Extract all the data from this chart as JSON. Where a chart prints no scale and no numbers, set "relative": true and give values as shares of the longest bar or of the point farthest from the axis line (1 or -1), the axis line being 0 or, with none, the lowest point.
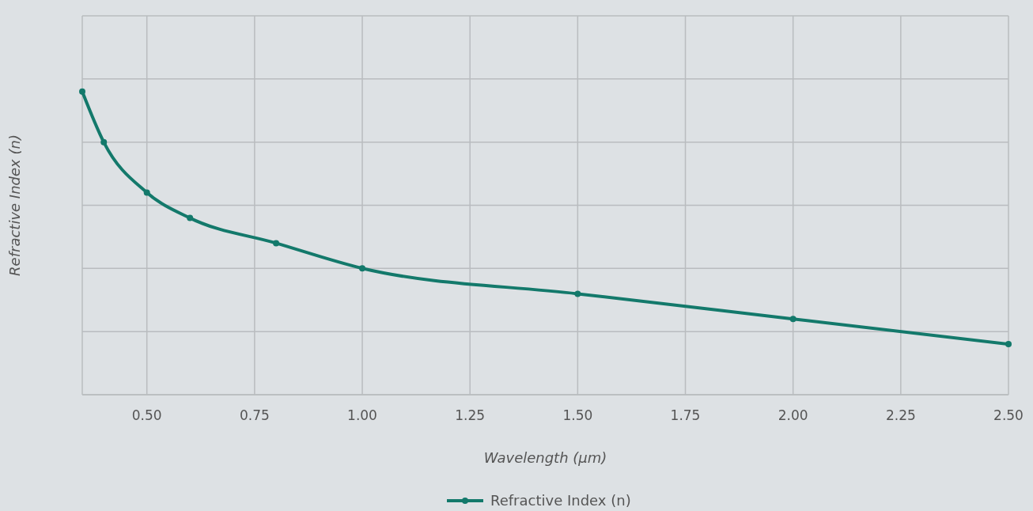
{
  "chart_data": {
    "type": "line",
    "xlabel": "Wavelength (µm)",
    "ylabel": "Refractive Index (n)",
    "x": [
      0.35,
      0.4,
      0.5,
      0.6,
      0.8,
      1.0,
      1.5,
      2.0,
      2.5
    ],
    "series": [
      {
        "name": "Refractive Index (n)",
        "color": "#13796b",
        "values": [
          1,
          0.833,
          0.667,
          0.583,
          0.5,
          0.417,
          0.333,
          0.25,
          0.167
        ]
      }
    ],
    "relative": true,
    "xlim": [
      0.35,
      2.5
    ],
    "xticks": [
      {
        "value": 0.5,
        "label": "0.50"
      },
      {
        "value": 0.75,
        "label": "0.75"
      },
      {
        "value": 1.0,
        "label": "1.00"
      },
      {
        "value": 1.25,
        "label": "1.25"
      },
      {
        "value": 1.5,
        "label": "1.50"
      },
      {
        "value": 1.75,
        "label": "1.75"
      },
      {
        "value": 2.0,
        "label": "2.00"
      },
      {
        "value": 2.25,
        "label": "2.25"
      },
      {
        "value": 2.5,
        "label": "2.50"
      }
    ],
    "grid": true,
    "legend": "bottom",
    "marker": "circle",
    "line_style": "solid"
  }
}
